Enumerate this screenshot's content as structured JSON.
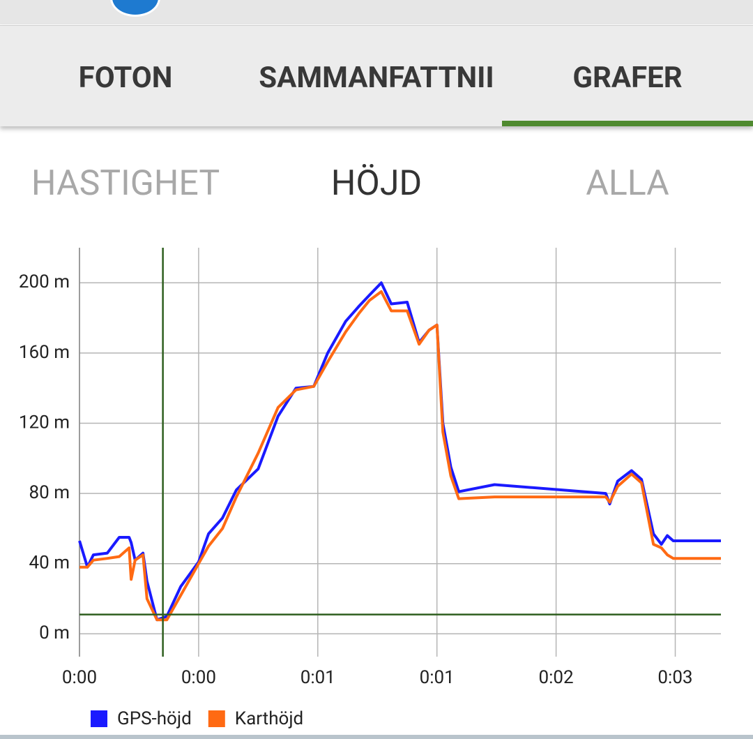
{
  "tabs": [
    "FOTON",
    "SAMMANFATTNII",
    "GRAFER"
  ],
  "subtabs": [
    "HASTIGHET",
    "HÖJD",
    "ALLA"
  ],
  "chart_data": {
    "type": "line",
    "x": [
      0,
      0.04,
      0.07,
      0.14,
      0.2,
      0.25,
      0.26,
      0.28,
      0.32,
      0.34,
      0.39,
      0.44,
      0.51,
      0.6,
      0.65,
      0.72,
      0.79,
      0.9,
      1.0,
      1.09,
      1.18,
      1.25,
      1.34,
      1.41,
      1.46,
      1.52,
      1.57,
      1.65,
      1.71,
      1.76,
      1.8,
      1.83,
      1.87,
      1.91,
      2.09,
      2.65,
      2.67,
      2.71,
      2.78,
      2.83,
      2.89,
      2.93,
      2.96,
      2.99,
      3.23
    ],
    "series": [
      {
        "name": "GPS-höjd",
        "color": "#1a1aff",
        "values": [
          53,
          38,
          45,
          46,
          55,
          55,
          52,
          42,
          46,
          30,
          8,
          10,
          27,
          41,
          57,
          66,
          82,
          94,
          124,
          140,
          141,
          160,
          178,
          187,
          193,
          200,
          188,
          189,
          166,
          173,
          176,
          120,
          95,
          81,
          85,
          80,
          74,
          87,
          93,
          88,
          57,
          51,
          56,
          53,
          53
        ]
      },
      {
        "name": "Karthöjd",
        "color": "#ff6a13",
        "values": [
          38,
          38,
          42,
          43,
          44,
          49,
          31,
          42,
          45,
          20,
          8,
          8,
          22,
          40,
          50,
          60,
          78,
          103,
          129,
          139,
          141,
          155,
          172,
          183,
          190,
          195,
          184,
          184,
          165,
          173,
          176,
          115,
          90,
          77,
          78,
          78,
          75,
          84,
          91,
          86,
          51,
          49,
          45,
          43,
          43
        ]
      }
    ],
    "xlim": [
      0,
      3.23
    ],
    "xticks": [
      {
        "value": 0,
        "label": "0:00"
      },
      {
        "value": 0.6,
        "label": "0:00"
      },
      {
        "value": 1.2,
        "label": "0:01"
      },
      {
        "value": 1.8,
        "label": "0:01"
      },
      {
        "value": 2.4,
        "label": "0:02"
      },
      {
        "value": 3.0,
        "label": "0:03"
      }
    ],
    "ylim": [
      -13,
      220
    ],
    "yticks": [
      {
        "value": 0,
        "label": "0 m"
      },
      {
        "value": 40,
        "label": "40 m"
      },
      {
        "value": 80,
        "label": "80 m"
      },
      {
        "value": 120,
        "label": "120 m"
      },
      {
        "value": 160,
        "label": "160 m"
      },
      {
        "value": 200,
        "label": "200 m"
      }
    ],
    "grid": true,
    "crosshair": {
      "x": 0.42,
      "y": 11,
      "color": "#2e5e1e"
    }
  }
}
